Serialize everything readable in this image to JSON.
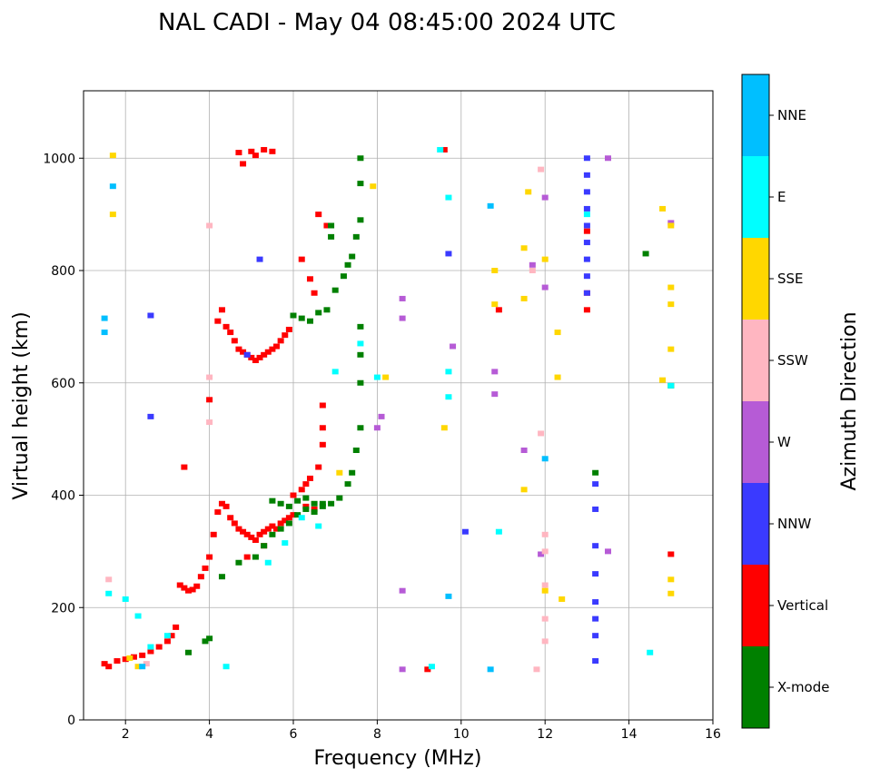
{
  "chart_data": {
    "type": "scatter",
    "title": "NAL CADI - May 04 08:45:00 2024 UTC",
    "xlabel": "Frequency (MHz)",
    "ylabel": "Virtual height (km)",
    "xlim": [
      1,
      16
    ],
    "ylim": [
      0,
      1120
    ],
    "xticks": [
      2,
      4,
      6,
      8,
      10,
      12,
      14,
      16
    ],
    "yticks": [
      0,
      200,
      400,
      600,
      800,
      1000
    ],
    "grid": true,
    "colorbar": {
      "label": "Azimuth Direction",
      "categories": [
        {
          "name": "X-mode",
          "color": "#008000"
        },
        {
          "name": "Vertical",
          "color": "#ff0000"
        },
        {
          "name": "NNW",
          "color": "#3a3aff"
        },
        {
          "name": "W",
          "color": "#b65bd6"
        },
        {
          "name": "SSW",
          "color": "#ffb6c1"
        },
        {
          "name": "SSE",
          "color": "#ffd700"
        },
        {
          "name": "E",
          "color": "#00ffff"
        },
        {
          "name": "NNE",
          "color": "#00bfff"
        }
      ]
    },
    "series": [
      {
        "name": "Vertical",
        "points": [
          [
            1.5,
            100
          ],
          [
            1.6,
            95
          ],
          [
            1.8,
            105
          ],
          [
            2.0,
            108
          ],
          [
            2.2,
            112
          ],
          [
            2.4,
            115
          ],
          [
            2.6,
            122
          ],
          [
            2.8,
            130
          ],
          [
            3.0,
            140
          ],
          [
            3.1,
            150
          ],
          [
            3.2,
            165
          ],
          [
            3.3,
            240
          ],
          [
            3.4,
            235
          ],
          [
            3.5,
            230
          ],
          [
            3.6,
            232
          ],
          [
            3.7,
            238
          ],
          [
            3.8,
            255
          ],
          [
            3.9,
            270
          ],
          [
            4.0,
            290
          ],
          [
            4.1,
            330
          ],
          [
            4.2,
            370
          ],
          [
            4.3,
            385
          ],
          [
            4.4,
            380
          ],
          [
            4.5,
            360
          ],
          [
            4.6,
            350
          ],
          [
            4.7,
            340
          ],
          [
            4.8,
            335
          ],
          [
            4.9,
            330
          ],
          [
            5.0,
            325
          ],
          [
            5.1,
            320
          ],
          [
            5.2,
            330
          ],
          [
            5.3,
            335
          ],
          [
            5.4,
            340
          ],
          [
            5.5,
            345
          ],
          [
            5.6,
            340
          ],
          [
            5.7,
            350
          ],
          [
            5.8,
            355
          ],
          [
            5.9,
            360
          ],
          [
            6.0,
            365
          ],
          [
            4.2,
            710
          ],
          [
            4.3,
            730
          ],
          [
            4.4,
            700
          ],
          [
            4.5,
            690
          ],
          [
            4.6,
            675
          ],
          [
            4.7,
            660
          ],
          [
            4.8,
            655
          ],
          [
            4.9,
            650
          ],
          [
            5.0,
            645
          ],
          [
            5.1,
            640
          ],
          [
            5.2,
            645
          ],
          [
            5.3,
            650
          ],
          [
            5.4,
            655
          ],
          [
            5.5,
            660
          ],
          [
            5.6,
            665
          ],
          [
            5.7,
            675
          ],
          [
            5.8,
            685
          ],
          [
            5.9,
            695
          ],
          [
            6.2,
            820
          ],
          [
            6.4,
            785
          ],
          [
            6.6,
            900
          ],
          [
            6.8,
            880
          ],
          [
            6.5,
            760
          ],
          [
            6.7,
            560
          ],
          [
            6.7,
            520
          ],
          [
            6.7,
            490
          ],
          [
            6.6,
            450
          ],
          [
            6.4,
            430
          ],
          [
            6.3,
            420
          ],
          [
            6.2,
            410
          ],
          [
            6.0,
            400
          ],
          [
            6.3,
            380
          ],
          [
            6.5,
            375
          ],
          [
            4.7,
            1010
          ],
          [
            5.0,
            1012
          ],
          [
            5.3,
            1015
          ],
          [
            4.8,
            990
          ],
          [
            5.1,
            1005
          ],
          [
            5.5,
            1012
          ],
          [
            4.0,
            570
          ],
          [
            3.4,
            450
          ],
          [
            4.9,
            290
          ],
          [
            5.3,
            310
          ],
          [
            9.2,
            90
          ],
          [
            9.6,
            1015
          ],
          [
            10.9,
            730
          ],
          [
            13.0,
            730
          ],
          [
            13.0,
            760
          ],
          [
            13.0,
            870
          ],
          [
            15.0,
            295
          ]
        ]
      },
      {
        "name": "X-mode",
        "points": [
          [
            3.5,
            120
          ],
          [
            3.9,
            140
          ],
          [
            4.0,
            145
          ],
          [
            4.3,
            255
          ],
          [
            4.7,
            280
          ],
          [
            5.1,
            290
          ],
          [
            5.3,
            310
          ],
          [
            5.5,
            330
          ],
          [
            5.7,
            340
          ],
          [
            5.9,
            350
          ],
          [
            6.1,
            365
          ],
          [
            6.3,
            375
          ],
          [
            6.5,
            370
          ],
          [
            6.7,
            380
          ],
          [
            6.9,
            385
          ],
          [
            7.1,
            395
          ],
          [
            7.3,
            420
          ],
          [
            7.4,
            440
          ],
          [
            7.5,
            480
          ],
          [
            7.6,
            520
          ],
          [
            5.5,
            390
          ],
          [
            5.7,
            385
          ],
          [
            5.9,
            380
          ],
          [
            6.1,
            390
          ],
          [
            6.3,
            395
          ],
          [
            6.5,
            385
          ],
          [
            6.7,
            385
          ],
          [
            6.0,
            720
          ],
          [
            6.2,
            715
          ],
          [
            6.4,
            710
          ],
          [
            6.6,
            725
          ],
          [
            6.8,
            730
          ],
          [
            7.0,
            765
          ],
          [
            7.2,
            790
          ],
          [
            7.3,
            810
          ],
          [
            7.4,
            825
          ],
          [
            7.5,
            860
          ],
          [
            7.6,
            890
          ],
          [
            7.6,
            955
          ],
          [
            7.6,
            1000
          ],
          [
            6.9,
            880
          ],
          [
            6.9,
            860
          ],
          [
            7.6,
            700
          ],
          [
            7.6,
            650
          ],
          [
            7.6,
            600
          ],
          [
            14.4,
            830
          ],
          [
            15.0,
            595
          ],
          [
            13.2,
            440
          ]
        ]
      },
      {
        "name": "NNW",
        "points": [
          [
            13.0,
            760
          ],
          [
            13.0,
            790
          ],
          [
            13.0,
            820
          ],
          [
            13.0,
            850
          ],
          [
            13.0,
            880
          ],
          [
            13.0,
            910
          ],
          [
            13.0,
            940
          ],
          [
            13.0,
            970
          ],
          [
            13.0,
            1000
          ],
          [
            13.2,
            420
          ],
          [
            13.2,
            375
          ],
          [
            13.2,
            310
          ],
          [
            13.2,
            260
          ],
          [
            13.2,
            210
          ],
          [
            13.2,
            180
          ],
          [
            13.2,
            150
          ],
          [
            13.2,
            105
          ],
          [
            4.9,
            650
          ],
          [
            5.2,
            820
          ],
          [
            2.6,
            540
          ],
          [
            2.6,
            720
          ],
          [
            10.1,
            335
          ],
          [
            9.7,
            830
          ]
        ]
      },
      {
        "name": "W",
        "points": [
          [
            8.0,
            520
          ],
          [
            8.1,
            540
          ],
          [
            8.6,
            750
          ],
          [
            8.6,
            715
          ],
          [
            8.6,
            230
          ],
          [
            8.6,
            90
          ],
          [
            9.8,
            665
          ],
          [
            10.8,
            620
          ],
          [
            10.8,
            580
          ],
          [
            12.0,
            930
          ],
          [
            12.0,
            770
          ],
          [
            13.5,
            1000
          ],
          [
            13.5,
            300
          ],
          [
            15.0,
            885
          ],
          [
            11.7,
            810
          ],
          [
            11.5,
            480
          ],
          [
            11.9,
            295
          ]
        ]
      },
      {
        "name": "SSW",
        "points": [
          [
            1.6,
            250
          ],
          [
            2.5,
            100
          ],
          [
            4.0,
            880
          ],
          [
            4.0,
            610
          ],
          [
            4.0,
            530
          ],
          [
            11.9,
            980
          ],
          [
            11.9,
            510
          ],
          [
            12.0,
            330
          ],
          [
            12.0,
            300
          ],
          [
            12.0,
            240
          ],
          [
            12.0,
            180
          ],
          [
            12.0,
            140
          ],
          [
            11.8,
            90
          ],
          [
            11.7,
            800
          ]
        ]
      },
      {
        "name": "SSE",
        "points": [
          [
            1.7,
            1005
          ],
          [
            1.7,
            900
          ],
          [
            2.3,
            95
          ],
          [
            2.1,
            110
          ],
          [
            7.1,
            440
          ],
          [
            7.9,
            950
          ],
          [
            8.2,
            610
          ],
          [
            9.6,
            520
          ],
          [
            10.8,
            800
          ],
          [
            10.8,
            740
          ],
          [
            11.5,
            410
          ],
          [
            11.5,
            750
          ],
          [
            11.5,
            840
          ],
          [
            11.6,
            940
          ],
          [
            12.0,
            820
          ],
          [
            12.0,
            230
          ],
          [
            12.3,
            690
          ],
          [
            12.3,
            610
          ],
          [
            12.4,
            215
          ],
          [
            14.8,
            910
          ],
          [
            14.8,
            605
          ],
          [
            15.0,
            880
          ],
          [
            15.0,
            770
          ],
          [
            15.0,
            740
          ],
          [
            15.0,
            660
          ],
          [
            15.0,
            250
          ],
          [
            15.0,
            225
          ]
        ]
      },
      {
        "name": "E",
        "points": [
          [
            1.6,
            225
          ],
          [
            2.0,
            215
          ],
          [
            2.3,
            185
          ],
          [
            2.6,
            130
          ],
          [
            3.0,
            150
          ],
          [
            4.4,
            95
          ],
          [
            5.4,
            280
          ],
          [
            5.8,
            315
          ],
          [
            6.2,
            360
          ],
          [
            6.6,
            345
          ],
          [
            7.0,
            620
          ],
          [
            7.6,
            670
          ],
          [
            8.0,
            610
          ],
          [
            9.3,
            95
          ],
          [
            9.5,
            1015
          ],
          [
            9.7,
            930
          ],
          [
            9.7,
            620
          ],
          [
            9.7,
            575
          ],
          [
            10.9,
            335
          ],
          [
            13.0,
            900
          ],
          [
            14.5,
            120
          ],
          [
            15.0,
            595
          ]
        ]
      },
      {
        "name": "NNE",
        "points": [
          [
            1.5,
            715
          ],
          [
            1.5,
            690
          ],
          [
            1.7,
            950
          ],
          [
            9.7,
            220
          ],
          [
            10.7,
            915
          ],
          [
            10.7,
            90
          ],
          [
            12.0,
            465
          ],
          [
            2.4,
            95
          ]
        ]
      }
    ]
  }
}
